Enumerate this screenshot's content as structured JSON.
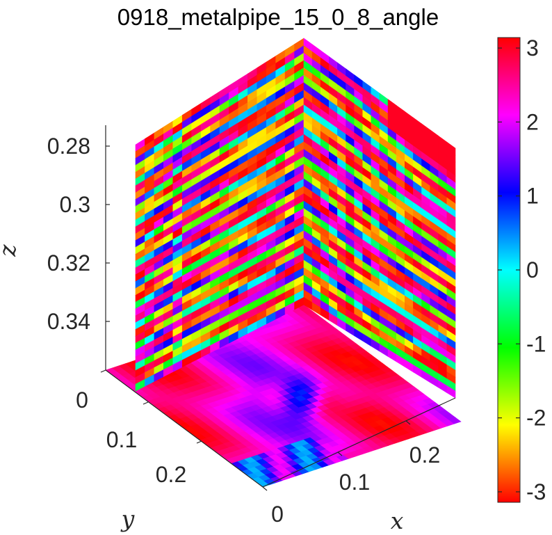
{
  "chart_data": {
    "type": "heatmap",
    "title": "0918_metalpipe_15_0_8_angle",
    "xlabel": "x",
    "ylabel": "y",
    "zlabel": "z",
    "x_ticks": [
      "0",
      "0.1",
      "0.2"
    ],
    "y_ticks": [
      "0",
      "0.1",
      "0.2"
    ],
    "z_ticks": [
      "0.28",
      "0.3",
      "0.32",
      "0.34"
    ],
    "z_direction": "reversed",
    "colorbar": {
      "colormap": "hsv",
      "range": [
        -3.14159,
        3.14159
      ],
      "ticks": [
        "3",
        "2",
        "1",
        "0",
        "-1",
        "-2",
        "-3"
      ]
    },
    "slices": [
      "x-z back wall",
      "y-z side wall",
      "x-y floor"
    ],
    "value_description": "phase angle in radians, wrapped to [-pi, pi]"
  }
}
